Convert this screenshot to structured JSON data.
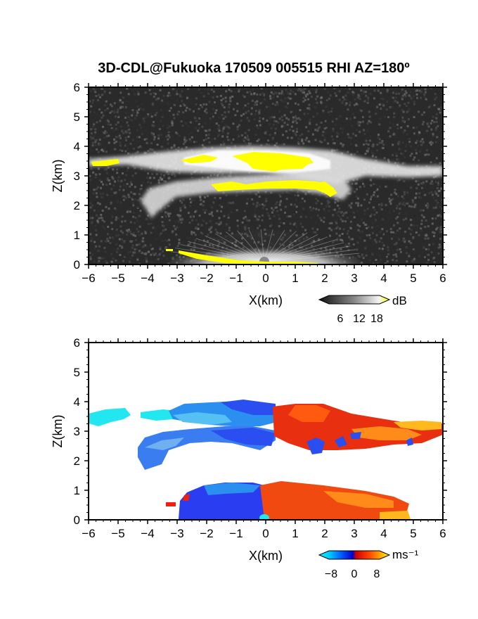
{
  "title": "3D-CDL@Fukuoka 170509 005515 RHI AZ=180º",
  "chart_data": [
    {
      "type": "heatmap",
      "panel": "reflectivity",
      "xlabel": "X(km)",
      "ylabel": "Z(km)",
      "xlim": [
        -6,
        6
      ],
      "ylim": [
        0,
        6
      ],
      "xticks": [
        "−6",
        "−5",
        "−4",
        "−3",
        "−2",
        "−1",
        "0",
        "1",
        "2",
        "3",
        "4",
        "5",
        "6"
      ],
      "yticks": [
        "0",
        "1",
        "2",
        "3",
        "4",
        "5",
        "6"
      ],
      "background": "#2a2a2a",
      "colorbar": {
        "unit": "dB",
        "ticks": [
          "6",
          "12",
          "18"
        ],
        "range": [
          0,
          21
        ]
      },
      "layers": [
        {
          "name": "upper cloud layer",
          "x": [
            -6,
            6
          ],
          "z_base": 3.2,
          "z_top": 3.9,
          "peak_dB": 15,
          "color": "#f0f0f0"
        },
        {
          "name": "lower cloud layer",
          "x": [
            -4,
            2.7
          ],
          "z_base": 2.1,
          "z_top": 3.0,
          "peak_dB": 14,
          "color": "#e6e6e6"
        },
        {
          "name": "near-ground echo",
          "x": [
            -2.5,
            2.5
          ],
          "z_base": 0,
          "z_top": 1.0,
          "peak_dB": 12,
          "color": "#cfcfcf"
        }
      ],
      "saturated_regions": [
        {
          "x": [
            -6,
            -5.2
          ],
          "z": [
            3.2,
            3.5
          ],
          "value_dB": ">18"
        },
        {
          "x": [
            -2,
            2.5
          ],
          "z": [
            3.2,
            3.7
          ],
          "value_dB": ">18"
        },
        {
          "x": [
            -1.5,
            2.5
          ],
          "z": [
            2.5,
            2.8
          ],
          "value_dB": ">18"
        },
        {
          "x": [
            -3.3,
            2.0
          ],
          "z": [
            0,
            0.5
          ],
          "value_dB": ">18"
        }
      ]
    },
    {
      "type": "heatmap",
      "panel": "doppler_velocity",
      "xlabel": "X(km)",
      "ylabel": "Z(km)",
      "xlim": [
        -6,
        6
      ],
      "ylim": [
        0,
        6
      ],
      "xticks": [
        "−6",
        "−5",
        "−4",
        "−3",
        "−2",
        "−1",
        "0",
        "1",
        "2",
        "3",
        "4",
        "5",
        "6"
      ],
      "yticks": [
        "0",
        "1",
        "2",
        "3",
        "4",
        "5",
        "6"
      ],
      "background": "#ffffff",
      "colorbar": {
        "unit": "ms⁻¹",
        "ticks": [
          "−8",
          "0",
          "8"
        ],
        "range": [
          -10,
          10
        ]
      },
      "regions": [
        {
          "name": "upper layer west",
          "x": [
            -4.2,
            0.3
          ],
          "z": [
            3.2,
            4.0
          ],
          "velocity_ms": -5
        },
        {
          "name": "upper layer east",
          "x": [
            0.3,
            6
          ],
          "z": [
            2.6,
            3.9
          ],
          "velocity_ms": 5
        },
        {
          "name": "west edge",
          "x": [
            -6,
            -4.6
          ],
          "z": [
            3.2,
            3.6
          ],
          "velocity_ms": -9
        },
        {
          "name": "lower layer",
          "x": [
            -4.4,
            0.5
          ],
          "z": [
            1.9,
            3.2
          ],
          "velocity_ms": -6
        },
        {
          "name": "near-ground west",
          "x": [
            -2.8,
            0
          ],
          "z": [
            0,
            1.2
          ],
          "velocity_ms": -7
        },
        {
          "name": "near-ground east",
          "x": [
            0,
            4.8
          ],
          "z": [
            0,
            1.2
          ],
          "velocity_ms": 5
        }
      ]
    }
  ]
}
